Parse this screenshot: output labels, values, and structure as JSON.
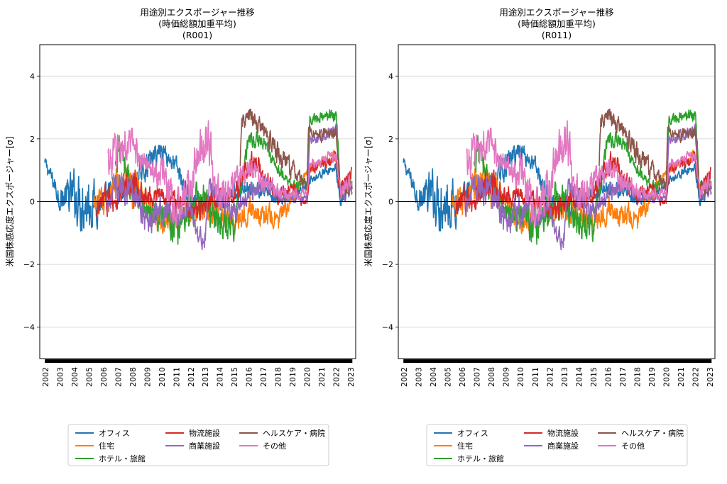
{
  "chart_data": [
    {
      "type": "line",
      "title_lines": [
        "用途別エクスポージャー推移",
        "(時価総額加重平均)",
        "(R001)"
      ],
      "ylabel": "米国株感応度エクスポージャー[σ]",
      "xlabel": "",
      "ylim": [
        -5,
        5
      ],
      "xlim": [
        2001.6,
        2023.35
      ],
      "yticks": [
        -4,
        -2,
        0,
        2,
        4
      ],
      "ytick_labels": [
        "−4",
        "−2",
        "0",
        "2",
        "4"
      ],
      "xtick_labels": [
        "2002",
        "2003",
        "2004",
        "2005",
        "2006",
        "2007",
        "2008",
        "2009",
        "2010",
        "2011",
        "2012",
        "2013",
        "2014",
        "2015",
        "2016",
        "2017",
        "2018",
        "2019",
        "2020",
        "2021",
        "2022",
        "2023"
      ],
      "grid": "horizontal",
      "zero_line": true,
      "legend_position": "bottom",
      "series": [
        {
          "name": "オフィス",
          "color": "#1f77b4",
          "start": 2001.95,
          "end": 2023.1,
          "base": [
            [
              2002,
              1.2
            ],
            [
              2003,
              0.1
            ],
            [
              2004,
              0.2
            ],
            [
              2005,
              0.0
            ],
            [
              2006,
              0.0
            ],
            [
              2007,
              0.6
            ],
            [
              2008,
              0.5
            ],
            [
              2009,
              1.2
            ],
            [
              2010,
              1.7
            ],
            [
              2011,
              1.1
            ],
            [
              2012,
              0.0
            ],
            [
              2013,
              -0.2
            ],
            [
              2014,
              -0.1
            ],
            [
              2015,
              0.3
            ],
            [
              2016,
              0.5
            ],
            [
              2017,
              0.3
            ],
            [
              2018,
              0.0
            ],
            [
              2019,
              0.1
            ],
            [
              2020,
              0.6
            ],
            [
              2021,
              0.9
            ],
            [
              2022,
              1.1
            ],
            [
              2022.3,
              0.0
            ],
            [
              2023,
              0.5
            ]
          ],
          "noise": [
            [
              2002,
              0.15
            ],
            [
              2003,
              0.3
            ],
            [
              2004.6,
              0.8
            ],
            [
              2005.5,
              0.5
            ],
            [
              2006,
              0.3
            ],
            [
              2009,
              0.3
            ],
            [
              2020,
              0.1
            ],
            [
              2023,
              0.15
            ]
          ]
        },
        {
          "name": "住宅",
          "color": "#ff7f0e",
          "start": 2005.3,
          "end": 2023.1,
          "base": [
            [
              2005.3,
              -0.2
            ],
            [
              2006,
              -0.1
            ],
            [
              2007,
              0.6
            ],
            [
              2008,
              0.8
            ],
            [
              2009,
              -0.2
            ],
            [
              2010,
              -0.6
            ],
            [
              2011,
              -0.5
            ],
            [
              2012,
              -0.3
            ],
            [
              2013,
              -0.2
            ],
            [
              2014,
              -0.4
            ],
            [
              2015,
              -0.6
            ],
            [
              2016,
              -0.2
            ],
            [
              2017,
              -0.4
            ],
            [
              2018,
              -0.6
            ],
            [
              2019,
              0.1
            ],
            [
              2020,
              1.0
            ],
            [
              2021,
              1.3
            ],
            [
              2022,
              1.5
            ],
            [
              2022.3,
              0.3
            ],
            [
              2023,
              0.6
            ]
          ],
          "noise": [
            [
              2005.3,
              0.3
            ],
            [
              2008,
              0.6
            ],
            [
              2009,
              0.3
            ],
            [
              2014,
              0.3
            ],
            [
              2018,
              0.3
            ],
            [
              2020,
              0.1
            ],
            [
              2023,
              0.2
            ]
          ]
        },
        {
          "name": "ホテル・旅館",
          "color": "#2ca02c",
          "start": 2006.8,
          "end": 2023.1,
          "base": [
            [
              2006.8,
              1.0
            ],
            [
              2007,
              1.8
            ],
            [
              2008,
              0.4
            ],
            [
              2009,
              -0.3
            ],
            [
              2010,
              -0.7
            ],
            [
              2011,
              -0.6
            ],
            [
              2011.1,
              -1.2
            ],
            [
              2011.3,
              -0.3
            ],
            [
              2012,
              -0.2
            ],
            [
              2013,
              0.1
            ],
            [
              2014,
              -0.6
            ],
            [
              2015,
              -0.8
            ],
            [
              2016,
              2.0
            ],
            [
              2017,
              1.9
            ],
            [
              2018,
              1.0
            ],
            [
              2019,
              0.5
            ],
            [
              2020,
              0.6
            ],
            [
              2020.2,
              2.6
            ],
            [
              2021,
              2.7
            ],
            [
              2022,
              2.8
            ],
            [
              2022.3,
              0.5
            ],
            [
              2023,
              0.6
            ]
          ],
          "noise": [
            [
              2006.8,
              0.5
            ],
            [
              2009,
              0.3
            ],
            [
              2011,
              0.5
            ],
            [
              2014,
              0.4
            ],
            [
              2016,
              0.2
            ],
            [
              2020,
              0.1
            ],
            [
              2023,
              0.2
            ]
          ]
        },
        {
          "name": "物流施設",
          "color": "#d62728",
          "start": 2005.5,
          "end": 2023.1,
          "base": [
            [
              2005.5,
              -0.5
            ],
            [
              2006,
              0.0
            ],
            [
              2007,
              0.2
            ],
            [
              2008,
              0.5
            ],
            [
              2009,
              0.1
            ],
            [
              2010,
              0.3
            ],
            [
              2011,
              0.1
            ],
            [
              2012,
              -0.3
            ],
            [
              2013,
              -0.2
            ],
            [
              2014,
              0.2
            ],
            [
              2015,
              0.1
            ],
            [
              2016,
              1.3
            ],
            [
              2017,
              0.9
            ],
            [
              2018,
              0.1
            ],
            [
              2019,
              0.4
            ],
            [
              2020,
              -0.1
            ],
            [
              2020.2,
              1.0
            ],
            [
              2021,
              1.2
            ],
            [
              2022,
              1.4
            ],
            [
              2022.3,
              0.3
            ],
            [
              2023,
              0.9
            ]
          ],
          "noise": [
            [
              2005.5,
              0.3
            ],
            [
              2008,
              0.4
            ],
            [
              2010,
              0.2
            ],
            [
              2016,
              0.3
            ],
            [
              2020,
              0.1
            ],
            [
              2023,
              0.2
            ]
          ]
        },
        {
          "name": "商業施設",
          "color": "#9467bd",
          "start": 2006.2,
          "end": 2023.1,
          "base": [
            [
              2006.2,
              0.0
            ],
            [
              2007,
              0.4
            ],
            [
              2008,
              0.5
            ],
            [
              2009,
              -0.7
            ],
            [
              2010,
              -0.3
            ],
            [
              2011,
              -0.5
            ],
            [
              2012,
              -0.2
            ],
            [
              2012.5,
              -1.2
            ],
            [
              2013,
              -1.1
            ],
            [
              2013.3,
              0.5
            ],
            [
              2014,
              0.2
            ],
            [
              2015,
              -0.3
            ],
            [
              2016,
              0.2
            ],
            [
              2017,
              0.6
            ],
            [
              2018,
              0.3
            ],
            [
              2019,
              0.1
            ],
            [
              2020,
              0.1
            ],
            [
              2020.2,
              2.0
            ],
            [
              2021,
              2.1
            ],
            [
              2022,
              2.3
            ],
            [
              2022.3,
              0.2
            ],
            [
              2023,
              0.4
            ]
          ],
          "noise": [
            [
              2006.2,
              0.3
            ],
            [
              2009,
              0.4
            ],
            [
              2012,
              0.2
            ],
            [
              2014,
              0.3
            ],
            [
              2020,
              0.1
            ],
            [
              2023,
              0.2
            ]
          ]
        },
        {
          "name": "ヘルスケア・病院",
          "color": "#8c564b",
          "start": 2015.4,
          "end": 2023.1,
          "base": [
            [
              2015.4,
              1.0
            ],
            [
              2015.5,
              2.5
            ],
            [
              2016,
              2.7
            ],
            [
              2017,
              2.3
            ],
            [
              2018,
              1.5
            ],
            [
              2019,
              1.0
            ],
            [
              2020,
              0.5
            ],
            [
              2020.1,
              2.3
            ],
            [
              2021,
              2.1
            ],
            [
              2022,
              2.2
            ],
            [
              2022.3,
              0.2
            ],
            [
              2023,
              0.5
            ]
          ],
          "noise": [
            [
              2015.4,
              0.2
            ],
            [
              2018,
              0.3
            ],
            [
              2020,
              0.15
            ],
            [
              2023,
              0.2
            ]
          ]
        },
        {
          "name": "その他",
          "color": "#e377c2",
          "start": 2006.3,
          "end": 2023.1,
          "base": [
            [
              2006.3,
              1.2
            ],
            [
              2007,
              1.7
            ],
            [
              2008,
              1.8
            ],
            [
              2009,
              1.1
            ],
            [
              2010,
              1.0
            ],
            [
              2011,
              -0.3
            ],
            [
              2012,
              0.5
            ],
            [
              2013,
              2.0
            ],
            [
              2014,
              0.3
            ],
            [
              2015,
              0.6
            ],
            [
              2016,
              1.1
            ],
            [
              2017,
              0.6
            ],
            [
              2018,
              0.4
            ],
            [
              2019,
              0.2
            ],
            [
              2020,
              0.3
            ],
            [
              2020.2,
              1.2
            ],
            [
              2021,
              1.3
            ],
            [
              2022,
              1.5
            ],
            [
              2022.3,
              0.3
            ],
            [
              2023,
              0.6
            ]
          ],
          "noise": [
            [
              2006.3,
              0.5
            ],
            [
              2008,
              0.4
            ],
            [
              2009,
              0.3
            ],
            [
              2013,
              0.7
            ],
            [
              2014,
              0.4
            ],
            [
              2016,
              0.3
            ],
            [
              2020,
              0.1
            ],
            [
              2023,
              0.2
            ]
          ]
        }
      ]
    },
    {
      "type": "line",
      "title_lines": [
        "用途別エクスポージャー推移",
        "(時価総額加重平均)",
        "(R011)"
      ],
      "ylabel": "米国株感応度エクスポージャー[σ]",
      "xlabel": "",
      "ylim": [
        -5,
        5
      ],
      "xlim": [
        2001.6,
        2023.35
      ],
      "yticks": [
        -4,
        -2,
        0,
        2,
        4
      ],
      "ytick_labels": [
        "−4",
        "−2",
        "0",
        "2",
        "4"
      ],
      "xtick_labels": [
        "2002",
        "2003",
        "2004",
        "2005",
        "2006",
        "2007",
        "2008",
        "2009",
        "2010",
        "2011",
        "2012",
        "2013",
        "2014",
        "2015",
        "2016",
        "2017",
        "2018",
        "2019",
        "2020",
        "2021",
        "2022",
        "2023"
      ],
      "grid": "horizontal",
      "zero_line": true,
      "legend_position": "bottom",
      "series_same_as_chart": 0
    }
  ]
}
